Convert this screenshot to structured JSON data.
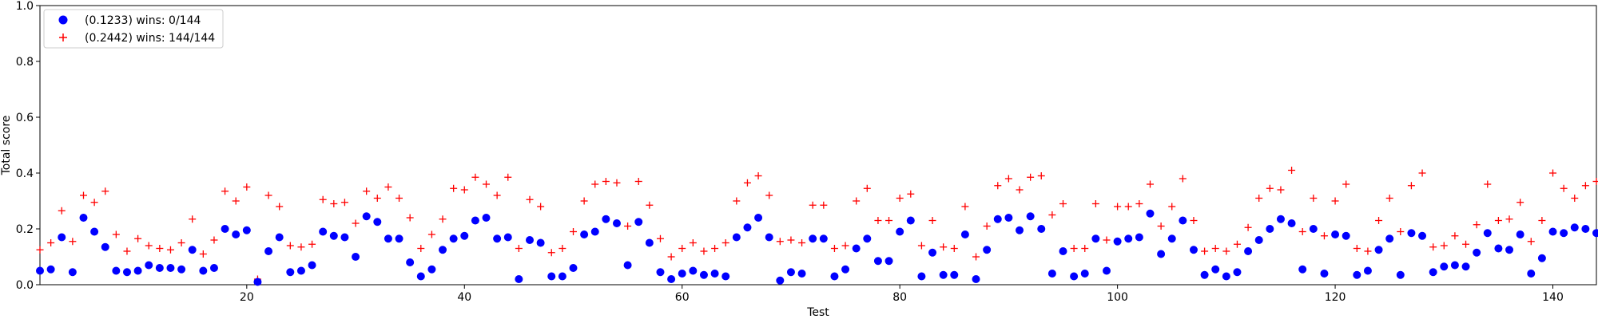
{
  "chart_data": {
    "type": "scatter",
    "title": "",
    "xlabel": "Test",
    "ylabel": "Total score",
    "xlim": [
      1,
      144
    ],
    "ylim": [
      0,
      1.0
    ],
    "xticks": [
      20,
      40,
      60,
      80,
      100,
      120,
      140
    ],
    "yticks": [
      0.0,
      0.2,
      0.4,
      0.6,
      0.8,
      1.0
    ],
    "grid": false,
    "legend_position": "upper-left",
    "series": [
      {
        "name": "(0.1233) wins: 0/144",
        "marker": "circle",
        "color": "#0000ff",
        "values": [
          0.05,
          0.055,
          0.17,
          0.045,
          0.24,
          0.19,
          0.135,
          0.05,
          0.045,
          0.05,
          0.07,
          0.06,
          0.06,
          0.055,
          0.125,
          0.05,
          0.06,
          0.2,
          0.18,
          0.195,
          0.01,
          0.12,
          0.17,
          0.045,
          0.05,
          0.07,
          0.19,
          0.175,
          0.17,
          0.1,
          0.245,
          0.225,
          0.165,
          0.165,
          0.08,
          0.03,
          0.055,
          0.125,
          0.165,
          0.175,
          0.23,
          0.24,
          0.165,
          0.17,
          0.02,
          0.16,
          0.15,
          0.03,
          0.03,
          0.06,
          0.18,
          0.19,
          0.235,
          0.22,
          0.07,
          0.225,
          0.15,
          0.045,
          0.02,
          0.04,
          0.05,
          0.035,
          0.04,
          0.03,
          0.17,
          0.205,
          0.24,
          0.17,
          0.015,
          0.045,
          0.04,
          0.165,
          0.165,
          0.03,
          0.055,
          0.13,
          0.165,
          0.085,
          0.085,
          0.19,
          0.23,
          0.03,
          0.115,
          0.035,
          0.035,
          0.18,
          0.02,
          0.125,
          0.235,
          0.24,
          0.195,
          0.245,
          0.2,
          0.04,
          0.12,
          0.03,
          0.04,
          0.165,
          0.05,
          0.155,
          0.165,
          0.17,
          0.255,
          0.11,
          0.165,
          0.23,
          0.125,
          0.035,
          0.055,
          0.03,
          0.045,
          0.12,
          0.16,
          0.2,
          0.235,
          0.22,
          0.055,
          0.2,
          0.04,
          0.18,
          0.175,
          0.035,
          0.05,
          0.125,
          0.165,
          0.035,
          0.185,
          0.175,
          0.045,
          0.065,
          0.07,
          0.065,
          0.115,
          0.185,
          0.13,
          0.125,
          0.18,
          0.04,
          0.095,
          0.19,
          0.185,
          0.205,
          0.2,
          0.185
        ]
      },
      {
        "name": "(0.2442) wins: 144/144",
        "marker": "plus",
        "color": "#ff0000",
        "values": [
          0.125,
          0.15,
          0.265,
          0.155,
          0.32,
          0.295,
          0.335,
          0.18,
          0.12,
          0.165,
          0.14,
          0.13,
          0.125,
          0.15,
          0.235,
          0.11,
          0.16,
          0.335,
          0.3,
          0.35,
          0.02,
          0.32,
          0.28,
          0.14,
          0.135,
          0.145,
          0.305,
          0.29,
          0.295,
          0.22,
          0.335,
          0.31,
          0.35,
          0.31,
          0.24,
          0.13,
          0.18,
          0.235,
          0.345,
          0.34,
          0.385,
          0.36,
          0.32,
          0.385,
          0.13,
          0.305,
          0.28,
          0.115,
          0.13,
          0.19,
          0.3,
          0.36,
          0.37,
          0.365,
          0.21,
          0.37,
          0.285,
          0.165,
          0.1,
          0.13,
          0.15,
          0.12,
          0.13,
          0.15,
          0.3,
          0.365,
          0.39,
          0.32,
          0.155,
          0.16,
          0.15,
          0.285,
          0.285,
          0.13,
          0.14,
          0.3,
          0.345,
          0.23,
          0.23,
          0.31,
          0.325,
          0.14,
          0.23,
          0.135,
          0.13,
          0.28,
          0.1,
          0.21,
          0.355,
          0.38,
          0.34,
          0.385,
          0.39,
          0.25,
          0.29,
          0.13,
          0.13,
          0.29,
          0.16,
          0.28,
          0.28,
          0.29,
          0.36,
          0.21,
          0.28,
          0.38,
          0.23,
          0.12,
          0.13,
          0.12,
          0.145,
          0.205,
          0.31,
          0.345,
          0.34,
          0.41,
          0.19,
          0.31,
          0.175,
          0.3,
          0.36,
          0.13,
          0.12,
          0.23,
          0.31,
          0.19,
          0.355,
          0.4,
          0.135,
          0.14,
          0.175,
          0.145,
          0.215,
          0.36,
          0.23,
          0.235,
          0.295,
          0.155,
          0.23,
          0.4,
          0.345,
          0.31,
          0.355,
          0.37
        ]
      }
    ]
  }
}
